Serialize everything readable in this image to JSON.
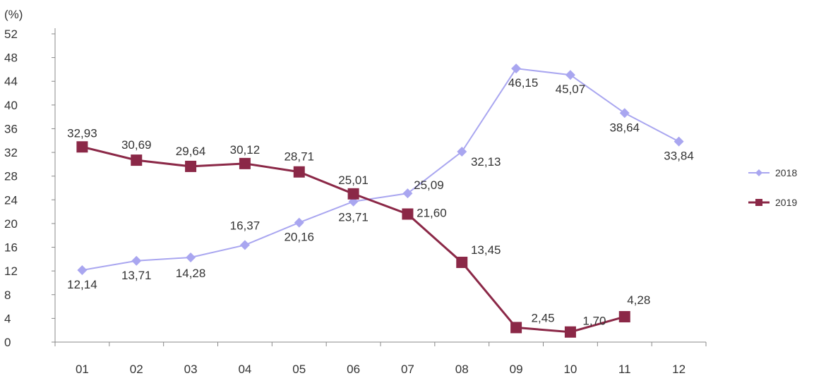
{
  "chart_data": {
    "type": "line",
    "unit_label": "(%)",
    "categories": [
      "01",
      "02",
      "03",
      "04",
      "05",
      "06",
      "07",
      "08",
      "09",
      "10",
      "11",
      "12"
    ],
    "ylim": [
      0,
      52
    ],
    "yticks": [
      0,
      4,
      8,
      12,
      16,
      20,
      24,
      28,
      32,
      36,
      40,
      44,
      48,
      52
    ],
    "legend_position": "right",
    "grid": false,
    "series": [
      {
        "name": "2018",
        "color": "#a9a6f0",
        "marker": "diamond",
        "values": [
          12.14,
          13.71,
          14.28,
          16.37,
          20.16,
          23.71,
          25.09,
          32.13,
          46.15,
          45.07,
          38.64,
          33.84
        ],
        "labels": [
          "12,14",
          "13,71",
          "14,28",
          "16,37",
          "20,16",
          "23,71",
          "25,09",
          "32,13",
          "46,15",
          "45,07",
          "38,64",
          "33,84"
        ]
      },
      {
        "name": "2019",
        "color": "#8b2847",
        "marker": "square",
        "values": [
          32.93,
          30.69,
          29.64,
          30.12,
          28.71,
          25.01,
          21.6,
          13.45,
          2.45,
          1.7,
          4.28,
          null
        ],
        "labels": [
          "32,93",
          "30,69",
          "29,64",
          "30,12",
          "28,71",
          "25,01",
          "21,60",
          "13,45",
          "2,45",
          "1,70",
          "4,28",
          null
        ]
      }
    ]
  }
}
